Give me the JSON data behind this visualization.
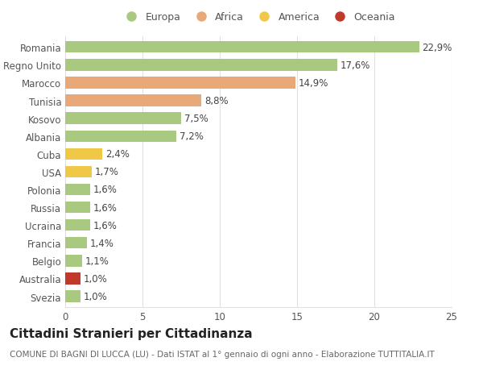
{
  "countries": [
    "Romania",
    "Regno Unito",
    "Marocco",
    "Tunisia",
    "Kosovo",
    "Albania",
    "Cuba",
    "USA",
    "Polonia",
    "Russia",
    "Ucraina",
    "Francia",
    "Belgio",
    "Australia",
    "Svezia"
  ],
  "values": [
    22.9,
    17.6,
    14.9,
    8.8,
    7.5,
    7.2,
    2.4,
    1.7,
    1.6,
    1.6,
    1.6,
    1.4,
    1.1,
    1.0,
    1.0
  ],
  "labels": [
    "22,9%",
    "17,6%",
    "14,9%",
    "8,8%",
    "7,5%",
    "7,2%",
    "2,4%",
    "1,7%",
    "1,6%",
    "1,6%",
    "1,6%",
    "1,4%",
    "1,1%",
    "1,0%",
    "1,0%"
  ],
  "continents": [
    "Europa",
    "Europa",
    "Africa",
    "Africa",
    "Europa",
    "Europa",
    "America",
    "America",
    "Europa",
    "Europa",
    "Europa",
    "Europa",
    "Europa",
    "Oceania",
    "Europa"
  ],
  "colors": {
    "Europa": "#a8c97f",
    "Africa": "#e8a878",
    "America": "#f0c848",
    "Oceania": "#c0392b"
  },
  "legend_order": [
    "Europa",
    "Africa",
    "America",
    "Oceania"
  ],
  "legend_colors": [
    "#a8c97f",
    "#e8a878",
    "#f0c848",
    "#c0392b"
  ],
  "title": "Cittadini Stranieri per Cittadinanza",
  "subtitle": "COMUNE DI BAGNI DI LUCCA (LU) - Dati ISTAT al 1° gennaio di ogni anno - Elaborazione TUTTITALIA.IT",
  "xlim": [
    0,
    25
  ],
  "xticks": [
    0,
    5,
    10,
    15,
    20,
    25
  ],
  "background_color": "#ffffff",
  "axes_bg_color": "#ffffff",
  "grid_color": "#e0e0e0",
  "bar_height": 0.65,
  "label_fontsize": 8.5,
  "tick_fontsize": 8.5,
  "title_fontsize": 11,
  "subtitle_fontsize": 7.5
}
